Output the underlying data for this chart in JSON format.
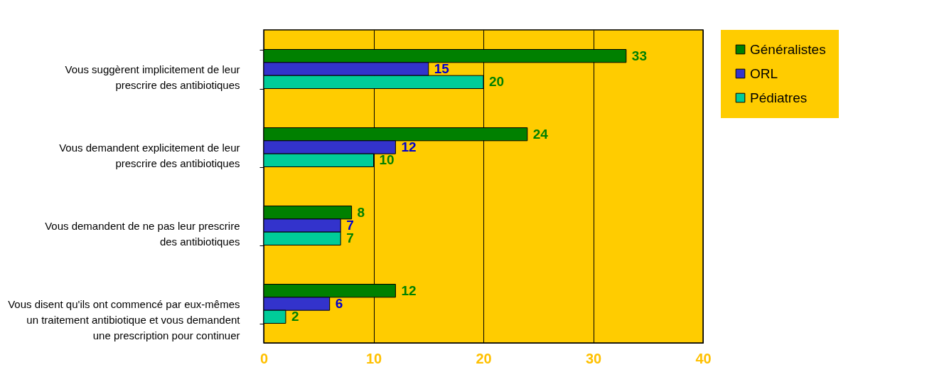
{
  "chart_data": {
    "type": "bar",
    "orientation": "horizontal",
    "categories": [
      "Vous suggèrent implicitement de leur\nprescrire des antibiotiques",
      "Vous demandent explicitement de leur\nprescrire des antibiotiques",
      "Vous demandent de ne pas leur prescrire\ndes antibiotiques",
      "Vous disent qu'ils ont commencé par eux-mêmes\nun traitement antibiotique et vous demandent\nune prescription pour continuer"
    ],
    "series": [
      {
        "name": "Généralistes",
        "color": "#008000",
        "values": [
          33,
          24,
          8,
          12
        ]
      },
      {
        "name": "ORL",
        "color": "#3333cc",
        "values": [
          15,
          12,
          7,
          6
        ]
      },
      {
        "name": "Pédiatres",
        "color": "#00cc99",
        "values": [
          20,
          10,
          7,
          2
        ]
      }
    ],
    "xlim": [
      0,
      40
    ],
    "xticks": [
      0,
      10,
      20,
      30,
      40
    ],
    "grid": "x",
    "legend": "right",
    "data_labels": true
  }
}
